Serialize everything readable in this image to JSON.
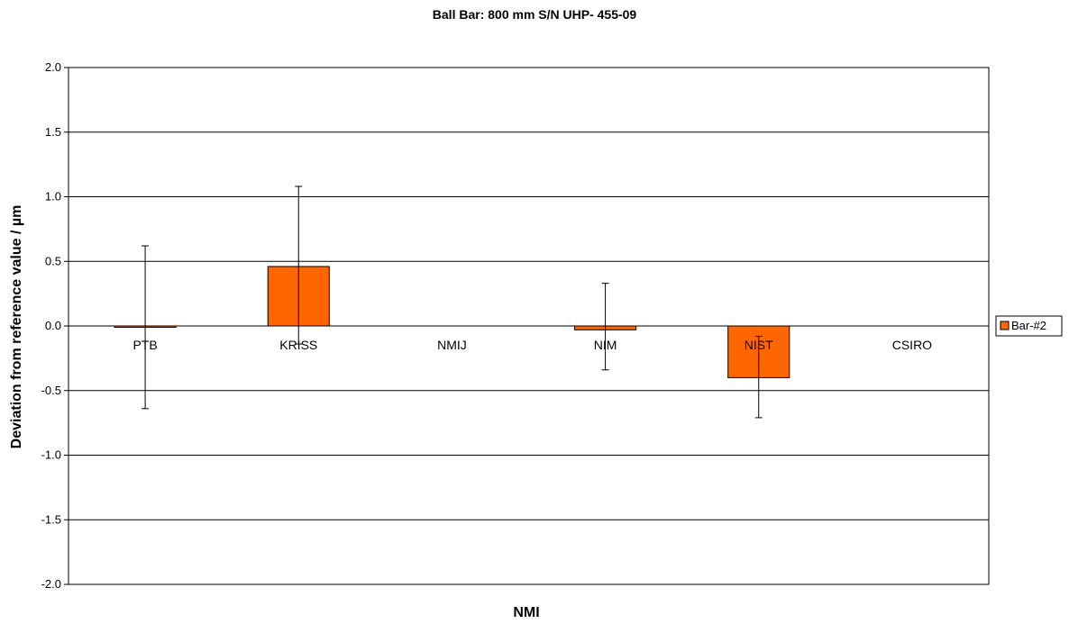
{
  "chart_data": {
    "type": "bar",
    "title": "Ball Bar: 800 mm  S/N UHP- 455-09",
    "xlabel": "NMI",
    "ylabel": "Deviation from reference value / µm",
    "categories": [
      "PTB",
      "KRISS",
      "NMIJ",
      "NIM",
      "NIST",
      "CSIRO"
    ],
    "series": [
      {
        "name": "Bar-#2",
        "values": [
          -0.01,
          0.46,
          null,
          -0.03,
          -0.4,
          null
        ],
        "error_low": [
          -0.64,
          -0.14,
          null,
          -0.34,
          -0.71,
          null
        ],
        "error_high": [
          0.62,
          1.08,
          null,
          0.33,
          -0.08,
          null
        ]
      }
    ],
    "ylim": [
      -2.0,
      2.0
    ],
    "yticks": [
      "2.0",
      "1.5",
      "1.0",
      "0.5",
      "0.0",
      "-0.5",
      "-1.0",
      "-1.5",
      "-2.0"
    ],
    "grid": true,
    "legend_position": "right",
    "colors": {
      "bar": "#ff6600",
      "bar_stroke": "#000000",
      "grid": "#000000"
    }
  }
}
